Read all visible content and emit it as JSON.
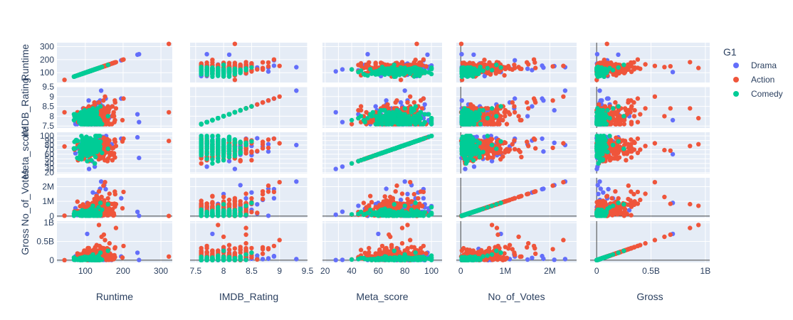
{
  "chart_data": {
    "type": "scatter",
    "subtype": "scatter_matrix",
    "dimensions": [
      "Runtime",
      "IMDB_Rating",
      "Meta_score",
      "No_of_Votes",
      "Gross"
    ],
    "legend": {
      "title": "G1",
      "placement": "top-right",
      "entries": [
        {
          "name": "Drama",
          "color": "#636efa"
        },
        {
          "name": "Action",
          "color": "#EF553B"
        },
        {
          "name": "Comedy",
          "color": "#00cc96"
        }
      ]
    },
    "axes": {
      "Runtime": {
        "range": [
          25,
          330
        ],
        "ticks": [
          100,
          200,
          300
        ],
        "tick_labels": [
          "100",
          "200",
          "300"
        ]
      },
      "IMDB_Rating": {
        "range": [
          7.4,
          9.5
        ],
        "ticks": [
          7.5,
          8,
          8.5,
          9,
          9.5
        ],
        "tick_labels": [
          "7.5",
          "8",
          "8.5",
          "9",
          "9.5"
        ]
      },
      "Meta_score": {
        "range": [
          18,
          108
        ],
        "ticks": [
          20,
          30,
          40,
          50,
          60,
          70,
          80,
          90,
          100
        ],
        "tick_labels_x": [
          "20",
          "40",
          "60",
          "80",
          "100"
        ],
        "tick_labels_y": [
          "20",
          "30",
          "40",
          "50",
          "60",
          "70",
          "80",
          "90",
          "100"
        ]
      },
      "No_of_Votes": {
        "range": [
          -100000,
          2600000
        ],
        "ticks": [
          0,
          1000000,
          2000000
        ],
        "tick_labels": [
          "0",
          "1M",
          "2M"
        ]
      },
      "Gross": {
        "range": [
          -60000000,
          1040000000
        ],
        "ticks": [
          0,
          500000000,
          1000000000
        ],
        "tick_labels": [
          "0",
          "0.5B",
          "1B"
        ]
      }
    },
    "zero_lines": [
      "No_of_Votes",
      "Gross"
    ],
    "grid": true,
    "series": [
      {
        "name": "Drama",
        "points": [
          {
            "Runtime": 142,
            "IMDB_Rating": 9.3,
            "Meta_score": 80,
            "No_of_Votes": 2343110,
            "Gross": 28341469
          },
          {
            "Runtime": 238,
            "IMDB_Rating": 8.1,
            "Meta_score": 97,
            "No_of_Votes": 290074,
            "Gross": 198676459
          },
          {
            "Runtime": 242,
            "IMDB_Rating": 7.7,
            "Meta_score": 52,
            "No_of_Votes": 20000,
            "Gross": 5000000
          },
          {
            "Runtime": 154,
            "IMDB_Rating": 8.9,
            "Meta_score": 94,
            "No_of_Votes": 1826188,
            "Gross": 107928762
          },
          {
            "Runtime": 139,
            "IMDB_Rating": 8.8,
            "Meta_score": 66,
            "No_of_Votes": 1854740,
            "Gross": 37030102
          },
          {
            "Runtime": 195,
            "IMDB_Rating": 8.9,
            "Meta_score": 94,
            "No_of_Votes": 1213505,
            "Gross": 96898818
          },
          {
            "Runtime": 133,
            "IMDB_Rating": 8.7,
            "Meta_score": 77,
            "No_of_Votes": 1100000,
            "Gross": 30000000
          },
          {
            "Runtime": 120,
            "IMDB_Rating": 8.5,
            "Meta_score": 90,
            "No_of_Votes": 1600000,
            "Gross": 60000000
          },
          {
            "Runtime": 150,
            "IMDB_Rating": 8.3,
            "Meta_score": 85,
            "No_of_Votes": 2100000,
            "Gross": 10000000
          },
          {
            "Runtime": 130,
            "IMDB_Rating": 8.0,
            "Meta_score": 82,
            "No_of_Votes": 1500000,
            "Gross": 15000000
          },
          {
            "Runtime": 140,
            "IMDB_Rating": 8.6,
            "Meta_score": 95,
            "No_of_Votes": 800000,
            "Gross": 120000000
          },
          {
            "Runtime": 110,
            "IMDB_Rating": 8.2,
            "Meta_score": 28,
            "No_of_Votes": 100000,
            "Gross": 2000000
          },
          {
            "Runtime": 125,
            "IMDB_Rating": 7.7,
            "Meta_score": 33,
            "No_of_Votes": 300000,
            "Gross": 8000000
          },
          {
            "Runtime": 160,
            "IMDB_Rating": 7.9,
            "Meta_score": 50,
            "No_of_Votes": 500000,
            "Gross": 40000000
          },
          {
            "Runtime": 118,
            "IMDB_Rating": 8.1,
            "Meta_score": 45,
            "No_of_Votes": 700000,
            "Gross": 55000000
          },
          {
            "Runtime": 105,
            "IMDB_Rating": 7.8,
            "Meta_score": 60,
            "No_of_Votes": 900000,
            "Gross": 700000000
          },
          {
            "Runtime": 135,
            "IMDB_Rating": 8.4,
            "Meta_score": 88,
            "No_of_Votes": 1200000,
            "Gross": 150000000
          },
          {
            "Runtime": 145,
            "IMDB_Rating": 8.0,
            "Meta_score": 75,
            "No_of_Votes": 400000,
            "Gross": 300000000
          }
        ]
      },
      {
        "name": "Action",
        "points": [
          {
            "Runtime": 321,
            "IMDB_Rating": 8.2,
            "Meta_score": 89,
            "No_of_Votes": 12000,
            "Gross": 95000000
          },
          {
            "Runtime": 45,
            "IMDB_Rating": 8.2,
            "Meta_score": 77,
            "No_of_Votes": 30000,
            "Gross": 1000000
          },
          {
            "Runtime": 152,
            "IMDB_Rating": 9.0,
            "Meta_score": 84,
            "No_of_Votes": 2303232,
            "Gross": 534858444
          },
          {
            "Runtime": 201,
            "IMDB_Rating": 8.9,
            "Meta_score": 94,
            "No_of_Votes": 1642758,
            "Gross": 377845905
          },
          {
            "Runtime": 148,
            "IMDB_Rating": 8.8,
            "Meta_score": 74,
            "No_of_Votes": 2067042,
            "Gross": 292576195
          },
          {
            "Runtime": 178,
            "IMDB_Rating": 8.8,
            "Meta_score": 92,
            "No_of_Votes": 1661481,
            "Gross": 315544750
          },
          {
            "Runtime": 136,
            "IMDB_Rating": 8.7,
            "Meta_score": 73,
            "No_of_Votes": 1676426,
            "Gross": 171479930
          },
          {
            "Runtime": 179,
            "IMDB_Rating": 8.7,
            "Meta_score": 87,
            "No_of_Votes": 1485555,
            "Gross": 342551365
          },
          {
            "Runtime": 124,
            "IMDB_Rating": 8.7,
            "Meta_score": 82,
            "No_of_Votes": 1159315,
            "Gross": 290475067
          },
          {
            "Runtime": 181,
            "IMDB_Rating": 8.4,
            "Meta_score": 78,
            "No_of_Votes": 809955,
            "Gross": 858373000
          },
          {
            "Runtime": 149,
            "IMDB_Rating": 8.4,
            "Meta_score": 68,
            "No_of_Votes": 834477,
            "Gross": 678815482
          },
          {
            "Runtime": 164,
            "IMDB_Rating": 8.4,
            "Meta_score": 78,
            "No_of_Votes": 1516346,
            "Gross": 448139099
          },
          {
            "Runtime": 143,
            "IMDB_Rating": 8.0,
            "Meta_score": 69,
            "No_of_Votes": 1300000,
            "Gross": 623357910
          },
          {
            "Runtime": 136,
            "IMDB_Rating": 7.9,
            "Meta_score": 82,
            "No_of_Votes": 700000,
            "Gross": 936662225
          },
          {
            "Runtime": 130,
            "IMDB_Rating": 8.1,
            "Meta_score": 70,
            "No_of_Votes": 1100000,
            "Gross": 400000000
          },
          {
            "Runtime": 120,
            "IMDB_Rating": 8.0,
            "Meta_score": 65,
            "No_of_Votes": 600000,
            "Gross": 250000000
          },
          {
            "Runtime": 115,
            "IMDB_Rating": 7.8,
            "Meta_score": 60,
            "No_of_Votes": 500000,
            "Gross": 180000000
          },
          {
            "Runtime": 140,
            "IMDB_Rating": 8.3,
            "Meta_score": 85,
            "No_of_Votes": 1000000,
            "Gross": 350000000
          },
          {
            "Runtime": 125,
            "IMDB_Rating": 7.6,
            "Meta_score": 40,
            "No_of_Votes": 100000,
            "Gross": 20000000
          },
          {
            "Runtime": 110,
            "IMDB_Rating": 7.7,
            "Meta_score": 55,
            "No_of_Votes": 300000,
            "Gross": 100000000
          },
          {
            "Runtime": 160,
            "IMDB_Rating": 8.5,
            "Meta_score": 90,
            "No_of_Votes": 1200000,
            "Gross": 200000000
          },
          {
            "Runtime": 175,
            "IMDB_Rating": 8.2,
            "Meta_score": 58,
            "No_of_Votes": 200000,
            "Gross": 30000000
          }
        ]
      },
      {
        "name": "Comedy",
        "points": [
          {
            "Runtime": 100,
            "IMDB_Rating": 8.0,
            "Meta_score": 75,
            "No_of_Votes": 200000,
            "Gross": 20000000
          },
          {
            "Runtime": 95,
            "IMDB_Rating": 7.8,
            "Meta_score": 70,
            "No_of_Votes": 100000,
            "Gross": 10000000
          },
          {
            "Runtime": 110,
            "IMDB_Rating": 8.2,
            "Meta_score": 85,
            "No_of_Votes": 400000,
            "Gross": 50000000
          },
          {
            "Runtime": 120,
            "IMDB_Rating": 8.4,
            "Meta_score": 80,
            "No_of_Votes": 700000,
            "Gross": 150000000
          },
          {
            "Runtime": 88,
            "IMDB_Rating": 7.6,
            "Meta_score": 60,
            "No_of_Votes": 50000,
            "Gross": 5000000
          },
          {
            "Runtime": 130,
            "IMDB_Rating": 8.1,
            "Meta_score": 90,
            "No_of_Votes": 300000,
            "Gross": 80000000
          },
          {
            "Runtime": 105,
            "IMDB_Rating": 7.9,
            "Meta_score": 45,
            "No_of_Votes": 150000,
            "Gross": 30000000
          },
          {
            "Runtime": 98,
            "IMDB_Rating": 7.7,
            "Meta_score": 95,
            "No_of_Votes": 250000,
            "Gross": 60000000
          },
          {
            "Runtime": 115,
            "IMDB_Rating": 8.3,
            "Meta_score": 65,
            "No_of_Votes": 500000,
            "Gross": 100000000
          },
          {
            "Runtime": 140,
            "IMDB_Rating": 8.5,
            "Meta_score": 88,
            "No_of_Votes": 900000,
            "Gross": 200000000
          },
          {
            "Runtime": 92,
            "IMDB_Rating": 8.0,
            "Meta_score": 55,
            "No_of_Votes": 80000,
            "Gross": 2000000
          },
          {
            "Runtime": 125,
            "IMDB_Rating": 7.8,
            "Meta_score": 40,
            "No_of_Votes": 120000,
            "Gross": 15000000
          },
          {
            "Runtime": 103,
            "IMDB_Rating": 8.1,
            "Meta_score": 78,
            "No_of_Votes": 350000,
            "Gross": 45000000
          },
          {
            "Runtime": 135,
            "IMDB_Rating": 7.9,
            "Meta_score": 100,
            "No_of_Votes": 600000,
            "Gross": 120000000
          },
          {
            "Runtime": 118,
            "IMDB_Rating": 7.6,
            "Meta_score": 82,
            "No_of_Votes": 200000,
            "Gross": 40000000
          },
          {
            "Runtime": 160,
            "IMDB_Rating": 8.0,
            "Meta_score": 72,
            "No_of_Votes": 800000,
            "Gross": 250000000
          }
        ]
      }
    ]
  }
}
